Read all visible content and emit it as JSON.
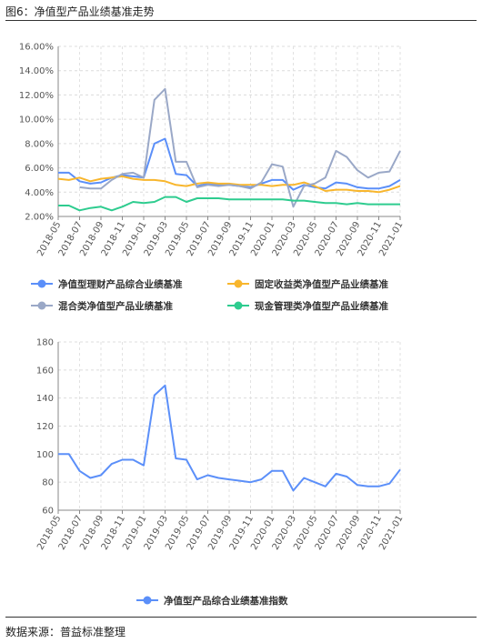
{
  "figure_title": "图6：净值型产品业绩基准走势",
  "source_text": "数据来源：普益标准整理",
  "chart_data": [
    {
      "type": "line",
      "categories": [
        "2018-05",
        "2018-06",
        "2018-07",
        "2018-08",
        "2018-09",
        "2018-10",
        "2018-11",
        "2018-12",
        "2019-01",
        "2019-02",
        "2019-03",
        "2019-04",
        "2019-05",
        "2019-06",
        "2019-07",
        "2019-08",
        "2019-09",
        "2019-10",
        "2019-11",
        "2019-12",
        "2020-01",
        "2020-02",
        "2020-03",
        "2020-04",
        "2020-05",
        "2020-06",
        "2020-07",
        "2020-08",
        "2020-09",
        "2020-10",
        "2020-11",
        "2020-12",
        "2021-01"
      ],
      "tick_labels": [
        "2018-05",
        "2018-07",
        "2018-09",
        "2018-11",
        "2019-01",
        "2019-03",
        "2019-05",
        "2019-07",
        "2019-09",
        "2019-11",
        "2020-01",
        "2020-03",
        "2020-05",
        "2020-07",
        "2020-09",
        "2020-11",
        "2021-01"
      ],
      "ylim": [
        2,
        16
      ],
      "yticks": [
        "2.00%",
        "4.00%",
        "6.00%",
        "8.00%",
        "10.00%",
        "12.00%",
        "14.00%",
        "16.00%"
      ],
      "legend_position": "bottom",
      "grid": true,
      "series": [
        {
          "name": "净值型理财产品综合业绩基准",
          "color": "#5b8ff9",
          "values": [
            5.6,
            5.6,
            4.9,
            4.7,
            4.8,
            5.2,
            5.4,
            5.3,
            5.2,
            8.0,
            8.4,
            5.5,
            5.4,
            4.5,
            4.7,
            4.6,
            4.6,
            4.5,
            4.4,
            4.7,
            5.0,
            5.0,
            4.2,
            4.6,
            4.4,
            4.3,
            4.8,
            4.7,
            4.4,
            4.3,
            4.3,
            4.5,
            5.0
          ]
        },
        {
          "name": "固定收益类净值型产品业绩基准",
          "color": "#f8b62d",
          "values": [
            5.1,
            5.0,
            5.2,
            4.9,
            5.1,
            5.2,
            5.3,
            5.1,
            5.0,
            5.0,
            4.9,
            4.6,
            4.5,
            4.7,
            4.8,
            4.7,
            4.7,
            4.6,
            4.6,
            4.6,
            4.5,
            4.6,
            4.6,
            4.8,
            4.5,
            4.1,
            4.2,
            4.2,
            4.1,
            4.1,
            4.0,
            4.2,
            4.5
          ]
        },
        {
          "name": "混合类净值型产品业绩基准",
          "color": "#9aa8c7",
          "values": [
            null,
            null,
            4.4,
            4.3,
            4.3,
            5.0,
            5.5,
            5.6,
            5.2,
            11.6,
            12.5,
            6.5,
            6.5,
            4.4,
            4.6,
            4.5,
            4.6,
            4.5,
            4.3,
            4.8,
            6.3,
            6.1,
            2.8,
            4.5,
            4.7,
            5.2,
            7.4,
            6.9,
            5.8,
            5.2,
            5.6,
            5.7,
            7.4
          ]
        },
        {
          "name": "现金管理类净值型产品业绩基准",
          "color": "#2ecc8f",
          "values": [
            2.9,
            2.9,
            2.5,
            2.7,
            2.8,
            2.5,
            2.8,
            3.2,
            3.1,
            3.2,
            3.6,
            3.6,
            3.2,
            3.5,
            3.5,
            3.5,
            3.4,
            3.4,
            3.4,
            3.4,
            3.4,
            3.4,
            3.3,
            3.3,
            3.2,
            3.1,
            3.1,
            3.0,
            3.1,
            3.0,
            3.0,
            3.0,
            3.0
          ]
        }
      ]
    },
    {
      "type": "line",
      "categories": [
        "2018-05",
        "2018-06",
        "2018-07",
        "2018-08",
        "2018-09",
        "2018-10",
        "2018-11",
        "2018-12",
        "2019-01",
        "2019-02",
        "2019-03",
        "2019-04",
        "2019-05",
        "2019-06",
        "2019-07",
        "2019-08",
        "2019-09",
        "2019-10",
        "2019-11",
        "2019-12",
        "2020-01",
        "2020-02",
        "2020-03",
        "2020-04",
        "2020-05",
        "2020-06",
        "2020-07",
        "2020-08",
        "2020-09",
        "2020-10",
        "2020-11",
        "2020-12",
        "2021-01"
      ],
      "tick_labels": [
        "2018-05",
        "2018-07",
        "2018-09",
        "2018-11",
        "2019-01",
        "2019-03",
        "2019-05",
        "2019-07",
        "2019-09",
        "2019-11",
        "2020-01",
        "2020-03",
        "2020-05",
        "2020-07",
        "2020-09",
        "2020-11",
        "2021-01"
      ],
      "ylim": [
        60,
        180
      ],
      "yticks": [
        "60",
        "80",
        "100",
        "120",
        "140",
        "160",
        "180"
      ],
      "legend_position": "bottom",
      "grid": true,
      "series": [
        {
          "name": "净值型产品综合业绩基准指数",
          "color": "#5b8ff9",
          "values": [
            100,
            100,
            88,
            83,
            85,
            93,
            96,
            96,
            92,
            142,
            149,
            97,
            96,
            82,
            85,
            83,
            82,
            81,
            80,
            82,
            88,
            88,
            74,
            83,
            80,
            77,
            86,
            84,
            78,
            77,
            77,
            79,
            89
          ]
        }
      ]
    }
  ]
}
